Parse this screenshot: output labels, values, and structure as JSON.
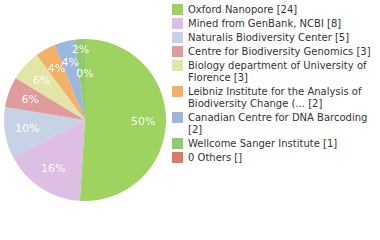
{
  "chart_data": {
    "type": "pie",
    "categories": [
      "Oxford Nanopore [24]",
      "Mined from GenBank, NCBI [8]",
      "Naturalis Biodiversity Center [5]",
      "Centre for Biodiversity Genomics [3]",
      "Biology department of University of Florence [3]",
      "Leibniz Institute for the Analysis of Biodiversity Change (... [2]",
      "Canadian Centre for DNA Barcoding [2]",
      "Wellcome Sanger Institute [1]",
      "0 Others []"
    ],
    "values": [
      50,
      16,
      10,
      6,
      6,
      4,
      4,
      2,
      0
    ],
    "value_labels": [
      "50%",
      "16%",
      "10%",
      "6%",
      "6%",
      "4%",
      "4%",
      "2%",
      "0%"
    ],
    "colors": [
      "#9fd35f",
      "#dcbfe3",
      "#c6d3e6",
      "#e09c9c",
      "#e3e5a6",
      "#f3b066",
      "#9cb6de",
      "#8fcb72",
      "#df7a68"
    ],
    "legend": "right",
    "data_labels": true
  }
}
